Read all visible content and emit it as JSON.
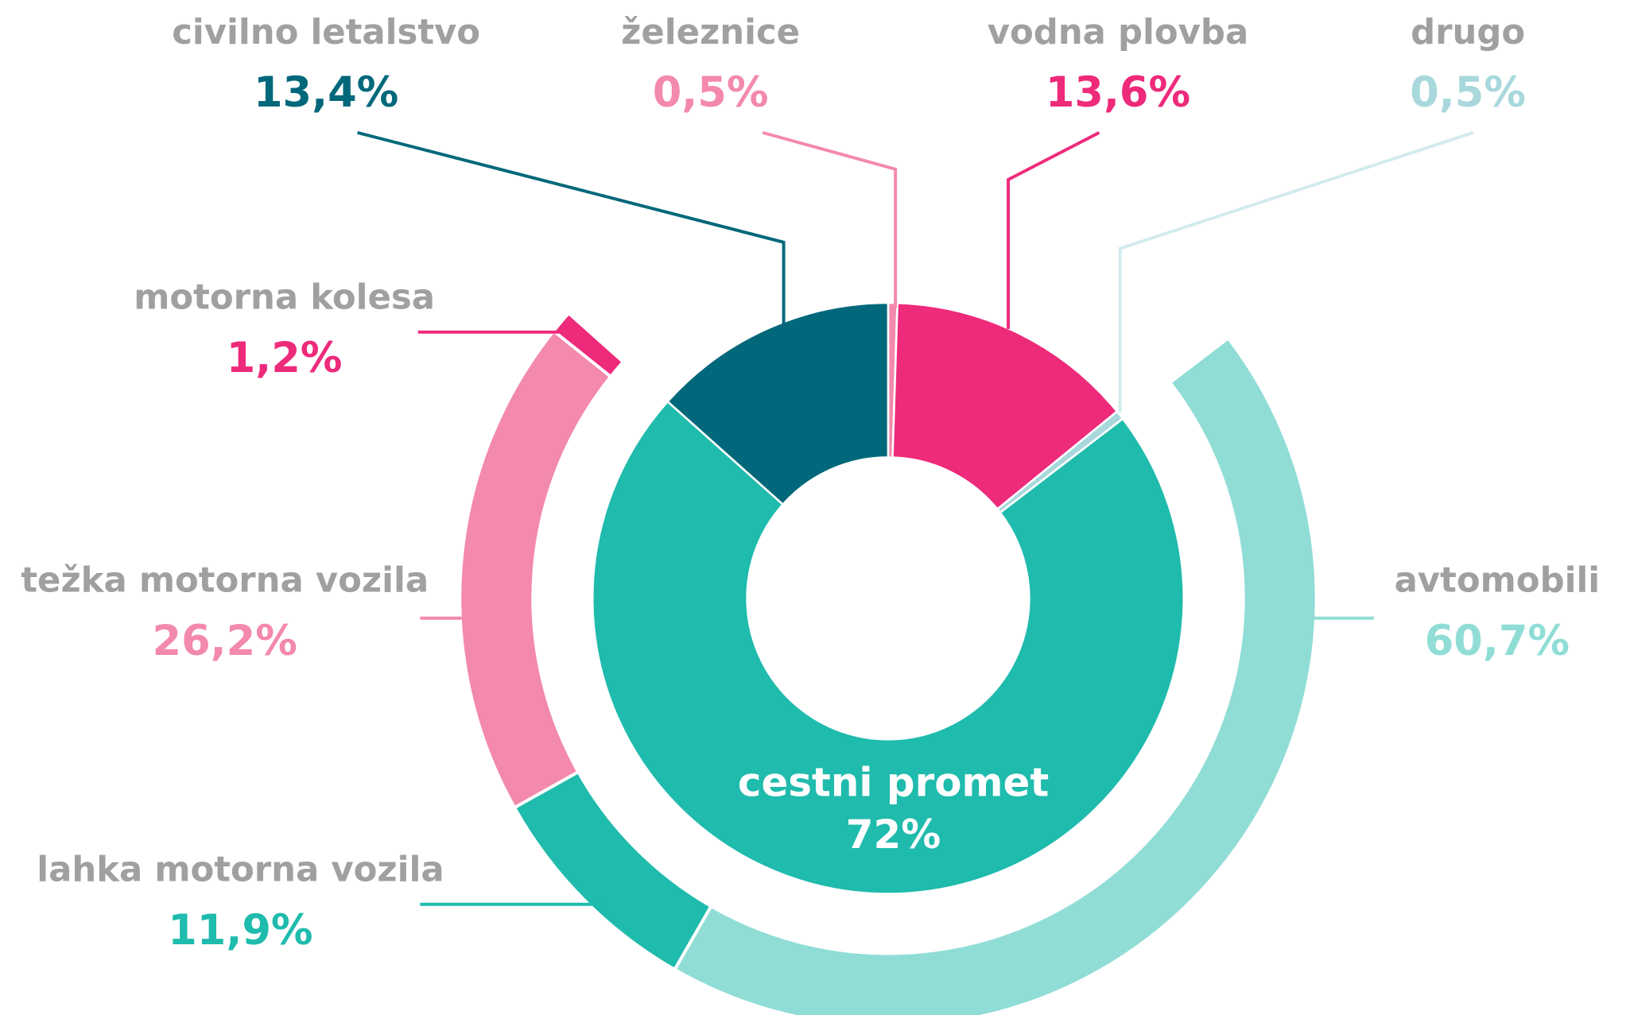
{
  "chart_data": {
    "type": "pie",
    "rings": [
      {
        "categories": [
          "železnice",
          "vodna plovba",
          "drugo",
          "cestni promet",
          "civilno letalstvo"
        ],
        "values": [
          0.5,
          13.6,
          0.5,
          72,
          13.4
        ],
        "value_labels": [
          "0,5%",
          "13,6%",
          "0,5%",
          "72%",
          "13,4%"
        ],
        "colors": [
          "#f389ab",
          "#ee2a7b",
          "#a8d8dc",
          "#1fbbad",
          "#00687a"
        ]
      },
      {
        "categories": [
          "avtomobili",
          "lahka motorna vozila",
          "težka motorna vozila",
          "motorna kolesa"
        ],
        "values": [
          60.7,
          11.9,
          26.2,
          1.2
        ],
        "value_labels": [
          "60,7%",
          "11,9%",
          "26,2%",
          "1,2%"
        ],
        "colors": [
          "#90ddd6",
          "#1fbbad",
          "#f389ab",
          "#ee2a7b"
        ]
      }
    ]
  }
}
